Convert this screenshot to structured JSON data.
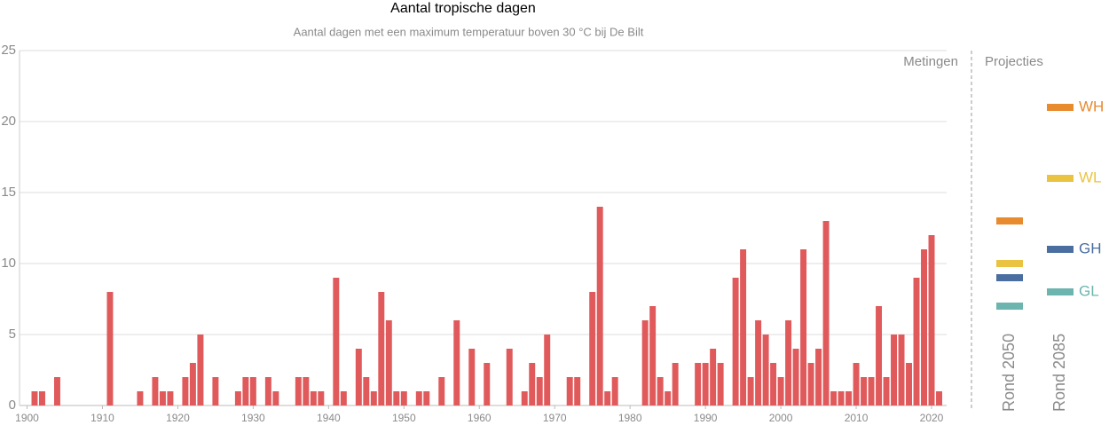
{
  "chart_data": {
    "type": "bar",
    "title": "Aantal tropische dagen",
    "subtitle": "Aantal dagen met een maximum temperatuur boven 30 °C bij De Bilt",
    "x": [
      1901,
      1902,
      1903,
      1904,
      1905,
      1906,
      1907,
      1908,
      1909,
      1910,
      1911,
      1912,
      1913,
      1914,
      1915,
      1916,
      1917,
      1918,
      1919,
      1920,
      1921,
      1922,
      1923,
      1924,
      1925,
      1926,
      1927,
      1928,
      1929,
      1930,
      1931,
      1932,
      1933,
      1934,
      1935,
      1936,
      1937,
      1938,
      1939,
      1940,
      1941,
      1942,
      1943,
      1944,
      1945,
      1946,
      1947,
      1948,
      1949,
      1950,
      1951,
      1952,
      1953,
      1954,
      1955,
      1956,
      1957,
      1958,
      1959,
      1960,
      1961,
      1962,
      1963,
      1964,
      1965,
      1966,
      1967,
      1968,
      1969,
      1970,
      1971,
      1972,
      1973,
      1974,
      1975,
      1976,
      1977,
      1978,
      1979,
      1980,
      1981,
      1982,
      1983,
      1984,
      1985,
      1986,
      1987,
      1988,
      1989,
      1990,
      1991,
      1992,
      1993,
      1994,
      1995,
      1996,
      1997,
      1998,
      1999,
      2000,
      2001,
      2002,
      2003,
      2004,
      2005,
      2006,
      2007,
      2008,
      2009,
      2010,
      2011,
      2012,
      2013,
      2014,
      2015,
      2016,
      2017,
      2018,
      2019,
      2020,
      2021
    ],
    "values": [
      1,
      1,
      0,
      2,
      0,
      0,
      0,
      0,
      0,
      0,
      8,
      0,
      0,
      0,
      1,
      0,
      2,
      1,
      1,
      0,
      2,
      3,
      5,
      0,
      2,
      0,
      0,
      1,
      2,
      2,
      0,
      2,
      1,
      0,
      0,
      2,
      2,
      1,
      1,
      0,
      9,
      1,
      0,
      4,
      2,
      1,
      8,
      6,
      1,
      1,
      0,
      1,
      1,
      0,
      2,
      0,
      6,
      0,
      4,
      0,
      3,
      0,
      0,
      4,
      0,
      1,
      3,
      2,
      5,
      0,
      0,
      2,
      2,
      0,
      8,
      14,
      1,
      2,
      0,
      0,
      0,
      6,
      7,
      2,
      1,
      3,
      0,
      0,
      3,
      3,
      4,
      3,
      0,
      9,
      11,
      2,
      6,
      5,
      3,
      2,
      6,
      4,
      11,
      3,
      4,
      13,
      1,
      1,
      1,
      3,
      2,
      2,
      7,
      2,
      5,
      5,
      3,
      9,
      11,
      12,
      1
    ],
    "color": "#e05a5c",
    "xlim": [
      1899,
      2022
    ],
    "xticks": [
      1900,
      1910,
      1920,
      1930,
      1940,
      1950,
      1960,
      1970,
      1980,
      1990,
      2000,
      2010,
      2020
    ],
    "ylim": [
      0,
      25
    ],
    "yticks": [
      0,
      5,
      10,
      15,
      20,
      25
    ],
    "grid": true,
    "measured_label": "Metingen",
    "projections": {
      "title": "Projecties",
      "categories": [
        "Rond 2050",
        "Rond 2085"
      ],
      "series": [
        {
          "name": "WH",
          "color": "#e88a2e",
          "values": [
            13,
            21
          ]
        },
        {
          "name": "WL",
          "color": "#ebc342",
          "values": [
            10,
            16
          ]
        },
        {
          "name": "GH",
          "color": "#4a6e9f",
          "values": [
            9,
            11
          ]
        },
        {
          "name": "GL",
          "color": "#6cb5ae",
          "values": [
            7,
            8
          ]
        }
      ]
    }
  }
}
